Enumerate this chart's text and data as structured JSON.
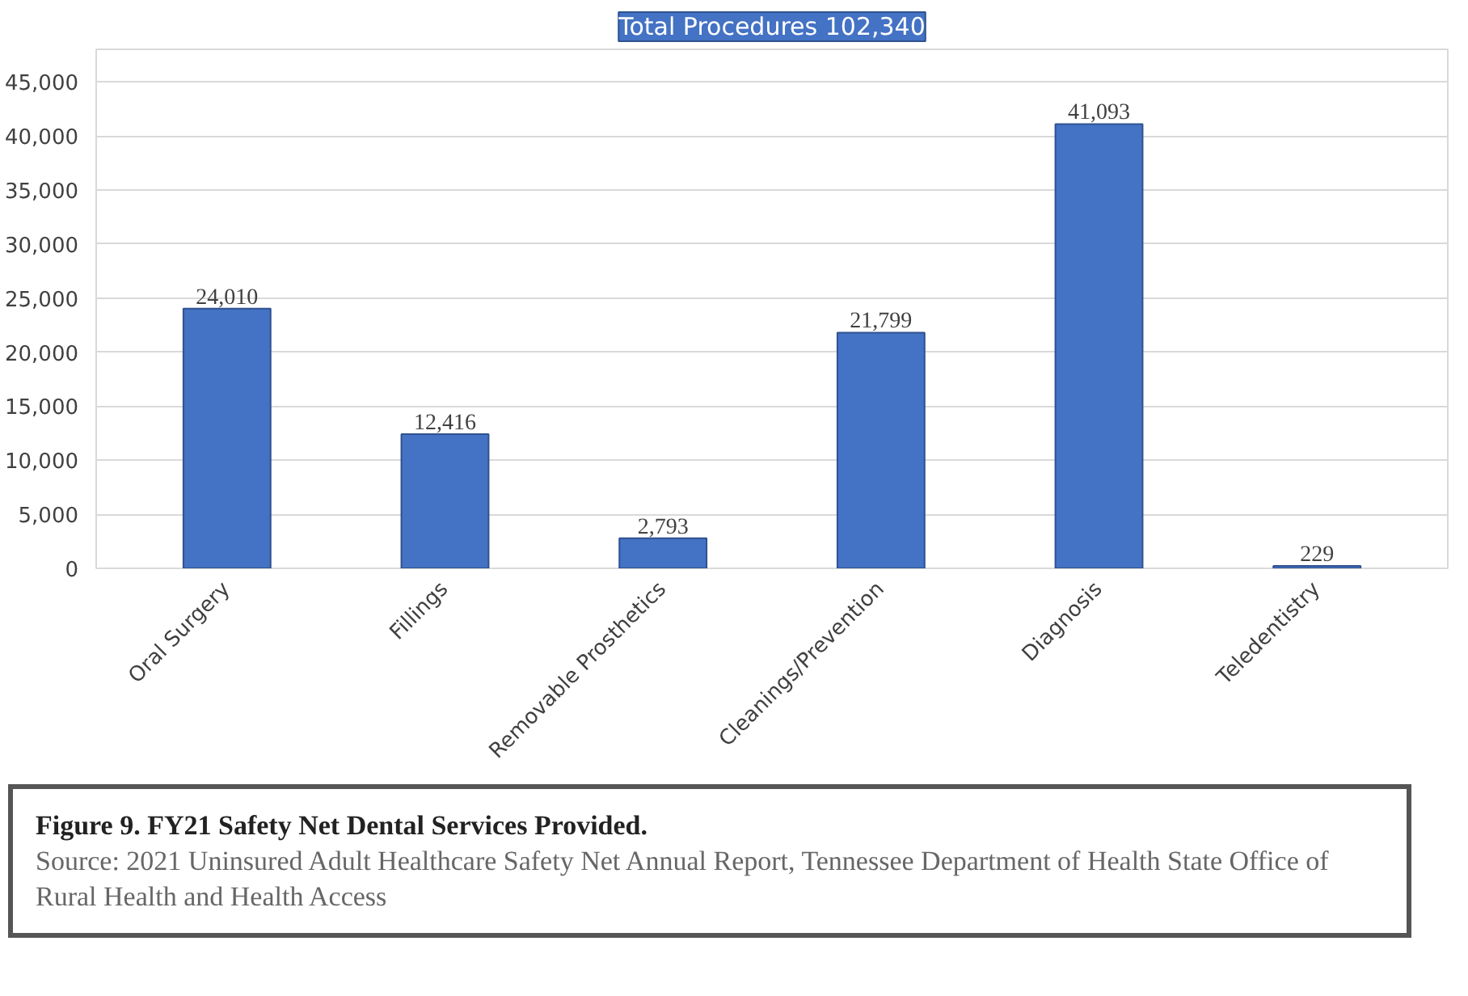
{
  "chart_data": {
    "type": "bar",
    "title": "Total Procedures 102,340",
    "categories": [
      "Oral Surgery",
      "Fillings",
      "Removable Prosthetics",
      "Cleanings/Prevention",
      "Diagnosis",
      "Teledentistry"
    ],
    "values": [
      24010,
      12416,
      2793,
      21799,
      41093,
      229
    ],
    "color": "#4472c4",
    "ylim": [
      0,
      48000
    ],
    "yticks": [
      {
        "value": 0,
        "label": "0"
      },
      {
        "value": 5000,
        "label": "5,000"
      },
      {
        "value": 10000,
        "label": "10,000"
      },
      {
        "value": 15000,
        "label": "15,000"
      },
      {
        "value": 20000,
        "label": "20,000"
      },
      {
        "value": 25000,
        "label": "25,000"
      },
      {
        "value": 30000,
        "label": "30,000"
      },
      {
        "value": 35000,
        "label": "35,000"
      },
      {
        "value": 40000,
        "label": "40,000"
      },
      {
        "value": 45000,
        "label": "45,000"
      }
    ],
    "grid": "y",
    "value_labels": [
      "24,010",
      "12,416",
      "2,793",
      "21,799",
      "41,093",
      "229"
    ],
    "annotations": [
      "Figure 9. FY21 Safety Net Dental Services Provided.",
      "Source: 2021 Uninsured Adult Healthcare Safety Net Annual Report, Tennessee Department of Health State Office of Rural Health and Health Access"
    ]
  }
}
